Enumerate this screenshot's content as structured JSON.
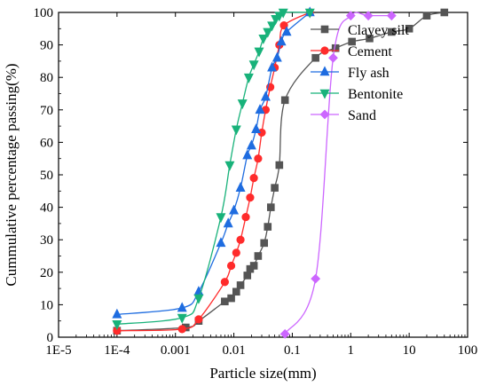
{
  "chart_data": {
    "type": "line",
    "xlabel": "Particle size(mm)",
    "ylabel": "Cummulative percentage passing(%)",
    "xscale": "log",
    "xlim": [
      1e-05,
      100
    ],
    "ylim": [
      0,
      100
    ],
    "x_ticks": [
      1e-05,
      0.0001,
      0.001,
      0.01,
      0.1,
      1,
      10,
      100
    ],
    "x_tick_labels": [
      "1E-5",
      "1E-4",
      "0.001",
      "0.01",
      "0.1",
      "1",
      "10",
      "100"
    ],
    "y_ticks": [
      0,
      10,
      20,
      30,
      40,
      50,
      60,
      70,
      80,
      90,
      100
    ],
    "y_tick_labels": [
      "0",
      "10",
      "20",
      "30",
      "40",
      "50",
      "60",
      "70",
      "80",
      "90",
      "100"
    ],
    "grid": false,
    "legend_position": "top-right",
    "series": [
      {
        "name": "Clayey silt",
        "color": "#555555",
        "marker": "square",
        "x": [
          0.0001,
          0.0015,
          0.0025,
          0.007,
          0.009,
          0.011,
          0.013,
          0.017,
          0.019,
          0.022,
          0.026,
          0.033,
          0.038,
          0.043,
          0.05,
          0.06,
          0.075,
          0.25,
          0.55,
          1.05,
          2.1,
          5.0,
          10.0,
          20.0,
          40.0
        ],
        "y": [
          2,
          3,
          5,
          11,
          12,
          14,
          16,
          19,
          21,
          22,
          25,
          29,
          34,
          40,
          46,
          53,
          73,
          86,
          89,
          91,
          92,
          94,
          95,
          99,
          100
        ]
      },
      {
        "name": "Cement",
        "color": "#ff2b2b",
        "marker": "circle",
        "x": [
          0.0001,
          0.0013,
          0.0025,
          0.007,
          0.009,
          0.011,
          0.013,
          0.016,
          0.019,
          0.022,
          0.026,
          0.03,
          0.035,
          0.042,
          0.05,
          0.06,
          0.072,
          0.2
        ],
        "y": [
          2,
          2.5,
          5.5,
          17,
          22,
          26,
          30,
          37,
          43,
          49,
          55,
          63,
          70,
          77,
          83,
          90,
          96,
          100
        ]
      },
      {
        "name": "Fly ash",
        "color": "#1e6ce0",
        "marker": "triangle-up",
        "x": [
          0.0001,
          0.0013,
          0.0025,
          0.006,
          0.008,
          0.01,
          0.013,
          0.017,
          0.02,
          0.024,
          0.028,
          0.035,
          0.045,
          0.055,
          0.065,
          0.08,
          0.2
        ],
        "y": [
          7,
          9,
          14,
          29,
          35,
          39,
          46,
          56,
          59,
          64,
          70,
          74,
          83,
          86,
          91,
          94,
          100
        ]
      },
      {
        "name": "Bentonite",
        "color": "#18b27a",
        "marker": "triangle-down",
        "x": [
          0.0001,
          0.0013,
          0.0025,
          0.006,
          0.0085,
          0.011,
          0.014,
          0.018,
          0.022,
          0.027,
          0.032,
          0.038,
          0.045,
          0.052,
          0.06,
          0.07,
          0.2
        ],
        "y": [
          4,
          6,
          12,
          37,
          53,
          64,
          72,
          80,
          84,
          88,
          92,
          94,
          96,
          98,
          99,
          100,
          100
        ]
      },
      {
        "name": "Sand",
        "color": "#cc66ff",
        "marker": "diamond",
        "x": [
          0.075,
          0.25,
          0.5,
          1.0,
          2.0,
          5.0
        ],
        "y": [
          1,
          18,
          86,
          99,
          99,
          99
        ]
      }
    ]
  }
}
